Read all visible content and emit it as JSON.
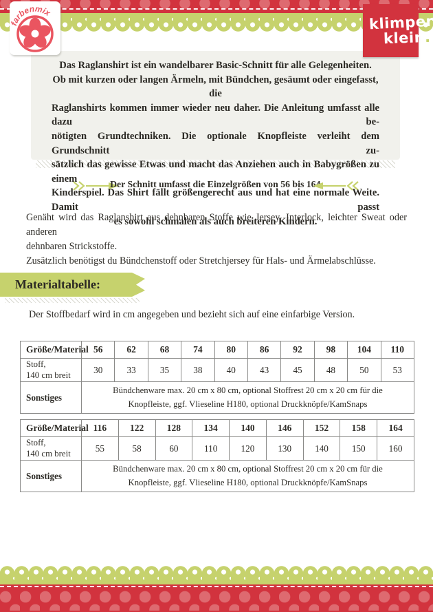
{
  "colors": {
    "brand_red": "#d2333e",
    "dot_red": "#de6a70",
    "brand_green": "#c6d26d",
    "panel_bg": "#f1f1ec",
    "logo_red": "#ea5560",
    "text_dark": "#2e2c27"
  },
  "logos": {
    "farbenmix": {
      "arc_text": "farbenmix"
    },
    "klimperklein": {
      "line1": "klimper",
      "line2": "klein",
      "dot": "."
    }
  },
  "intro_box": {
    "lines": [
      {
        "text": "Das Raglanshirt ist ein wandelbarer Basic-Schnitt für alle Gelegenheiten.",
        "align": "center"
      },
      {
        "text": "Ob mit kurzen oder langen Ärmeln, mit Bündchen, gesäumt oder eingefasst, die",
        "align": "center"
      },
      {
        "text": "Raglanshirts kommen immer wieder neu daher. Die Anleitung umfasst alle dazu be-",
        "align": "justify"
      },
      {
        "text": "nötigten Grundtechniken. Die optionale Knopfleiste verleiht dem Grundschnitt zu-",
        "align": "justify"
      },
      {
        "text": "sätzlich das gewisse Etwas und macht das Anziehen auch in Babygrößen zu einem",
        "align": "justify"
      },
      {
        "text": "Kinderspiel. Das Shirt fällt größengerecht aus und hat eine normale Weite. Damit passt",
        "align": "justify"
      },
      {
        "text": "es sowohl schmalen als auch breiteren Kindern.",
        "align": "center"
      }
    ]
  },
  "size_range": {
    "text": "Der Schnitt umfasst die Einzelgrößen von 56 bis 164."
  },
  "fabric_note": {
    "lines": [
      {
        "text": "Genäht wird das Raglanshirt aus dehnbaren Stoffe wie Jersey, Interlock, leichter Sweat oder anderen",
        "align": "justify"
      },
      {
        "text": "dehnbaren Strickstoffe.",
        "align": "left"
      },
      {
        "text": "Zusätzlich benötigst du Bündchenstoff oder Stretchjersey für Hals- und Ärmelabschlüsse.",
        "align": "left"
      }
    ]
  },
  "section": {
    "title": "Materialtabelle:"
  },
  "stoff_note": "Der Stoffbedarf wird in cm angegeben und bezieht sich auf eine einfarbige Version.",
  "tables": [
    {
      "label_col_width": "89px",
      "header_label": "Größe/Material",
      "sizes": [
        "56",
        "62",
        "68",
        "74",
        "80",
        "86",
        "92",
        "98",
        "104",
        "110"
      ],
      "stoff_label": [
        "Stoff,",
        "140 cm breit"
      ],
      "stoff_values": [
        "30",
        "33",
        "35",
        "38",
        "40",
        "43",
        "45",
        "48",
        "50",
        "53"
      ],
      "sonstiges_label": "Sonstiges",
      "sonstiges_lines": [
        "Bündchenware max. 20 cm x 80 cm, optional Stoffrest 20 cm x 20 cm für die",
        "Knopfleiste, ggf. Vlieseline H180, optional Druckknöpfe/KamSnaps"
      ]
    },
    {
      "label_col_width": "89px",
      "header_label": "Größe/Material",
      "sizes": [
        "116",
        "122",
        "128",
        "134",
        "140",
        "146",
        "152",
        "158",
        "164"
      ],
      "stoff_label": [
        "Stoff,",
        "140 cm breit"
      ],
      "stoff_values": [
        "55",
        "58",
        "60",
        "110",
        "120",
        "130",
        "140",
        "150",
        "160"
      ],
      "sonstiges_label": "Sonstiges",
      "sonstiges_lines": [
        "Bündchenware max. 20 cm x 80 cm, optional Stoffrest 20 cm x 20 cm für die",
        "Knopfleiste, ggf. Vlieseline H180, optional Druckknöpfe/KamSnaps"
      ]
    }
  ]
}
